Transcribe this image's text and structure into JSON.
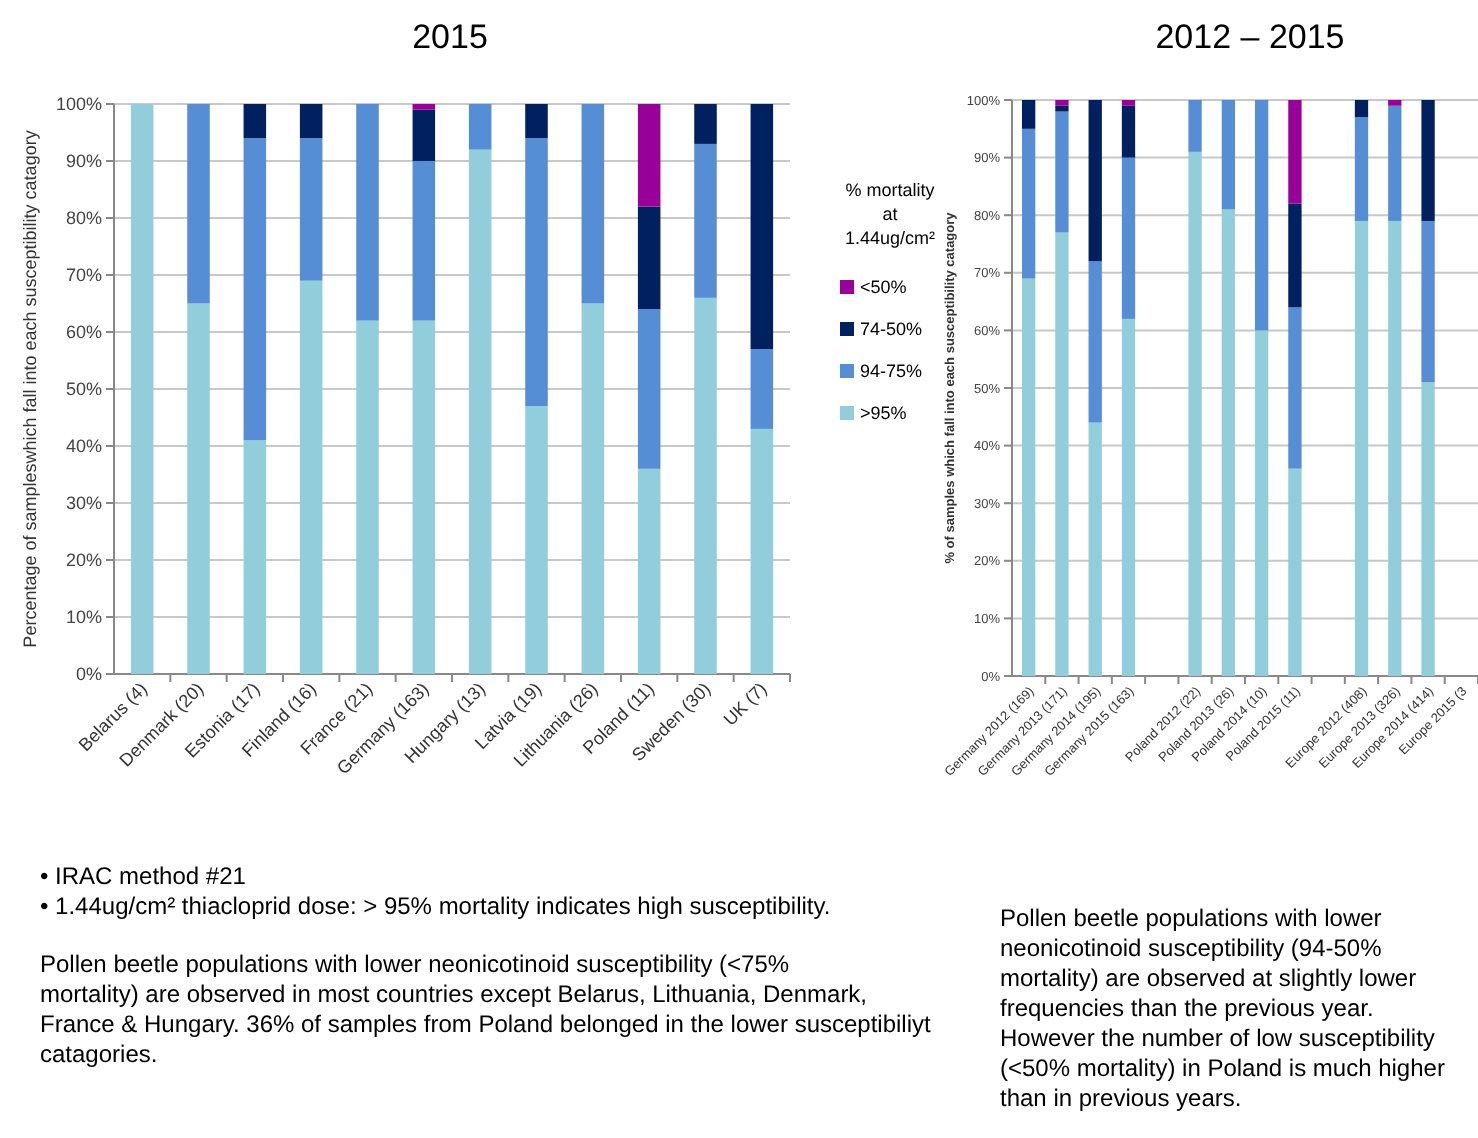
{
  "chart_data": [
    {
      "type": "bar",
      "stacked": true,
      "title": "2015",
      "ylabel": "Percentage of sampleswhich fall into each susceptibility catagory",
      "categories": [
        "Belarus (4)",
        "Denmark (20)",
        "Estonia (17)",
        "Finland (16)",
        "France (21)",
        "Germany (163)",
        "Hungary (13)",
        "Latvia (19)",
        "Lithuania (26)",
        "Poland (11)",
        "Sweden (30)",
        "UK (7)"
      ],
      "series": [
        {
          "name": ">95%",
          "color": "#92cddc",
          "values": [
            100,
            65,
            41,
            69,
            62,
            62,
            92,
            47,
            65,
            36,
            66,
            43
          ]
        },
        {
          "name": "94-75%",
          "color": "#558ed5",
          "values": [
            0,
            35,
            53,
            25,
            38,
            28,
            8,
            47,
            35,
            28,
            27,
            14
          ]
        },
        {
          "name": "74-50%",
          "color": "#002060",
          "values": [
            0,
            0,
            6,
            6,
            0,
            9,
            0,
            6,
            0,
            18,
            7,
            43
          ]
        },
        {
          "name": "<50%",
          "color": "#990099",
          "values": [
            0,
            0,
            0,
            0,
            0,
            1,
            0,
            0,
            0,
            18,
            0,
            0
          ]
        }
      ],
      "ylim": [
        0,
        100
      ],
      "yticks": [
        {
          "value": 0,
          "label": "0%"
        },
        {
          "value": 10,
          "label": "10%"
        },
        {
          "value": 20,
          "label": "20%"
        },
        {
          "value": 30,
          "label": "30%"
        },
        {
          "value": 40,
          "label": "40%"
        },
        {
          "value": 50,
          "label": "50%"
        },
        {
          "value": 60,
          "label": "60%"
        },
        {
          "value": 70,
          "label": "70%"
        },
        {
          "value": 80,
          "label": "80%"
        },
        {
          "value": 90,
          "label": "90%"
        },
        {
          "value": 100,
          "label": "100%"
        }
      ],
      "grid": "y",
      "legend": "right",
      "legend_title": "% mortality at 1.44ug/cm²",
      "annotations": [
        "• IRAC method  #21",
        "• 1.44ug/cm² thiacloprid dose:  > 95% mortality indicates high susceptibility.",
        "Pollen beetle populations with lower neonicotinoid susceptibility (<75% mortality) are observed in most countries except Belarus, Lithuania, Denmark, France & Hungary. 36% of samples from Poland belonged in the lower susceptibiliyt catagories."
      ]
    },
    {
      "type": "bar",
      "stacked": true,
      "title": "2012 – 2015",
      "ylabel": "% of samples which fall into each susceptibility catagory",
      "categories": [
        "Germany 2012 (169)",
        "Germany 2013 (171)",
        "Germany 2014 (195)",
        "Germany 2015 (163)",
        null,
        "Poland 2012 (22)",
        "Poland 2013 (26)",
        "Poland 2014 (10)",
        "Poland 2015 (11)",
        null,
        "Europe 2012 (408)",
        "Europe 2013 (326)",
        "Europe 2014 (414)",
        "Europe 2015 (3"
      ],
      "series": [
        {
          "color": "#92cddc",
          "values": [
            69,
            77,
            44,
            62,
            null,
            91,
            81,
            60,
            36,
            null,
            79,
            79,
            51,
            null
          ]
        },
        {
          "color": "#558ed5",
          "values": [
            26,
            21,
            28,
            28,
            null,
            9,
            19,
            40,
            28,
            null,
            18,
            20,
            28,
            null
          ]
        },
        {
          "color": "#002060",
          "values": [
            5,
            1,
            28,
            9,
            null,
            0,
            0,
            0,
            18,
            null,
            3,
            0,
            21,
            null
          ]
        },
        {
          "color": "#990099",
          "values": [
            0,
            1,
            0,
            1,
            null,
            0,
            0,
            0,
            18,
            null,
            0,
            1,
            0,
            null
          ]
        }
      ],
      "ylim": [
        0,
        100
      ],
      "yticks": [
        {
          "value": 0,
          "label": "0%"
        },
        {
          "value": 10,
          "label": "10%"
        },
        {
          "value": 20,
          "label": "20%"
        },
        {
          "value": 30,
          "label": "30%"
        },
        {
          "value": 40,
          "label": "40%"
        },
        {
          "value": 50,
          "label": "50%"
        },
        {
          "value": 60,
          "label": "60%"
        },
        {
          "value": 70,
          "label": "70%"
        },
        {
          "value": 80,
          "label": "80%"
        },
        {
          "value": 90,
          "label": "90%"
        },
        {
          "value": 100,
          "label": "100%"
        }
      ],
      "grid": "y",
      "annotations": [
        "Pollen beetle populations with lower neonicotinoid susceptibility  (94-50% mortality) are observed at slightly lower frequencies than the previous year. However the number of low susceptibility (<50% mortality) in Poland is much higher than in previous years."
      ]
    }
  ]
}
